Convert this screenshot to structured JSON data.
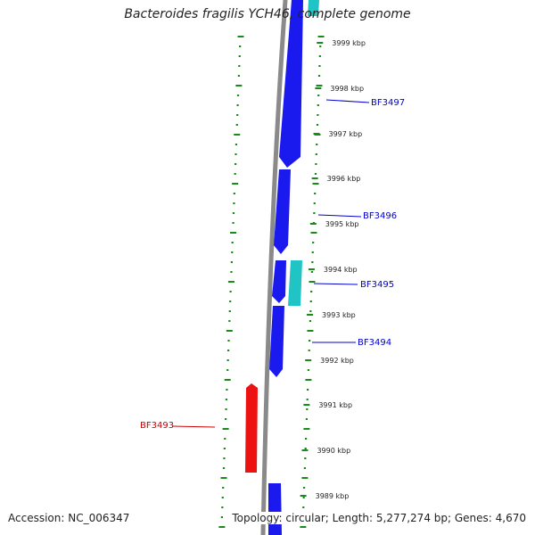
{
  "title": "Bacteroides fragilis YCH46, complete genome",
  "footer": {
    "accession": "Accession: NC_006347",
    "summary": "Topology: circular; Length: 5,277,274 bp; Genes: 4,670"
  },
  "colors": {
    "forward_gene": "#1a1aee",
    "rna_gene": "#21c4c4",
    "reverse_gene": "#ee1111",
    "backbone": "#8a8a8a",
    "ticks": "#1a8a1a",
    "label_forward": "#0000cc",
    "label_reverse": "#cc0000"
  },
  "kbp_markers": [
    {
      "label": "3999 kbp"
    },
    {
      "label": "3998 kbp"
    },
    {
      "label": "3997 kbp"
    },
    {
      "label": "3996 kbp"
    },
    {
      "label": "3995 kbp"
    },
    {
      "label": "3994 kbp"
    },
    {
      "label": "3993 kbp"
    },
    {
      "label": "3992 kbp"
    },
    {
      "label": "3991 kbp"
    },
    {
      "label": "3990 kbp"
    },
    {
      "label": "3989 kbp"
    }
  ],
  "genes": [
    {
      "name": "",
      "strand": "forward",
      "type": "CDS"
    },
    {
      "name": "",
      "strand": "forward",
      "type": "RNA"
    },
    {
      "name": "BF3497",
      "strand": "forward",
      "type": "CDS"
    },
    {
      "name": "BF3496",
      "strand": "forward",
      "type": "CDS"
    },
    {
      "name": "BF3495",
      "strand": "forward",
      "type": "RNA"
    },
    {
      "name": "BF3494",
      "strand": "forward",
      "type": "CDS"
    },
    {
      "name": "BF3493",
      "strand": "reverse",
      "type": "CDS"
    },
    {
      "name": "",
      "strand": "forward",
      "type": "CDS"
    }
  ]
}
